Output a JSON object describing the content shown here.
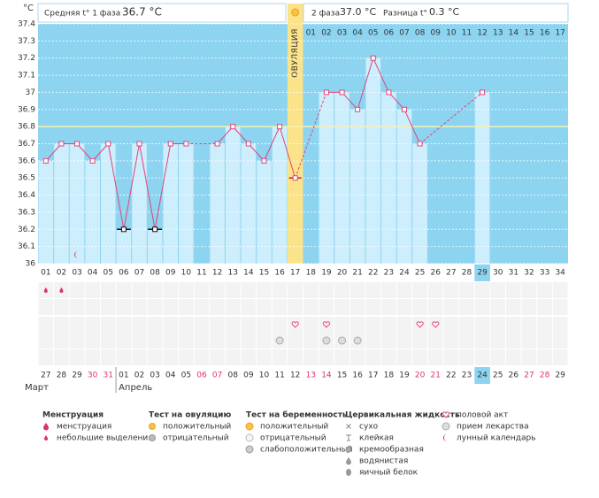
{
  "header": {
    "phase1_label": "Средняя t° 1 фаза",
    "phase1_value": "36.7 °C",
    "phase2_label": "2 фаза",
    "phase2_value": "37.0 °C",
    "diff_label": "Разница t°",
    "diff_value": "0.3 °C"
  },
  "chart_data": {
    "type": "line",
    "y_label": "°C",
    "categories": [
      "01",
      "02",
      "03",
      "04",
      "05",
      "06",
      "07",
      "08",
      "09",
      "10",
      "11",
      "12",
      "13",
      "14",
      "15",
      "16",
      "17",
      "18",
      "19",
      "20",
      "21",
      "22",
      "23",
      "24",
      "25",
      "26",
      "27",
      "28",
      "29",
      "30",
      "31",
      "32",
      "33",
      "34"
    ],
    "values": [
      36.6,
      36.7,
      36.7,
      36.6,
      36.7,
      36.2,
      36.7,
      36.2,
      36.7,
      36.7,
      null,
      36.7,
      36.8,
      36.7,
      36.6,
      36.8,
      36.5,
      null,
      37.0,
      37.0,
      36.9,
      37.2,
      37.0,
      36.9,
      36.7,
      null,
      null,
      null,
      37.0,
      null,
      null,
      null,
      null,
      null
    ],
    "ylim": [
      36,
      37.4
    ],
    "yticks": [
      36,
      36.1,
      36.2,
      36.3,
      36.4,
      36.5,
      36.6,
      36.7,
      36.8,
      36.9,
      37,
      37.1,
      37.2,
      37.3,
      37.4
    ],
    "grid": true,
    "color": "#e0457b",
    "bar_color": "#cdeefc",
    "background": "#8dd4f1",
    "coverline": 36.8,
    "ovulation_day": 17,
    "ovulation_label": "ОВУЛЯЦИЯ",
    "phase2_labels": [
      "01",
      "02",
      "03",
      "04",
      "05",
      "06",
      "07",
      "08",
      "09",
      "10",
      "11",
      "12",
      "13",
      "14",
      "15",
      "16",
      "17"
    ],
    "excluded_days": [
      6,
      8
    ],
    "current_day": 29,
    "dates": [
      "27",
      "28",
      "29",
      "30",
      "31",
      "01",
      "02",
      "03",
      "04",
      "05",
      "06",
      "07",
      "08",
      "09",
      "10",
      "11",
      "12",
      "13",
      "14",
      "15",
      "16",
      "17",
      "18",
      "19",
      "20",
      "21",
      "22",
      "23",
      "24",
      "25",
      "26",
      "27",
      "28",
      "29"
    ],
    "weekend_days": [
      4,
      5,
      11,
      12,
      18,
      19,
      25,
      26,
      32,
      33
    ],
    "months": [
      {
        "name": "Март",
        "start_day": 1
      },
      {
        "name": "Апрель",
        "start_day": 6
      }
    ],
    "events": {
      "menstruation": [
        1,
        2
      ],
      "intercourse": [
        17,
        19,
        25,
        26
      ],
      "medication": [
        16,
        19,
        20,
        21
      ],
      "lunar": [
        3
      ]
    }
  },
  "legend": [
    {
      "title": "Менструация",
      "items": [
        "менструация",
        "небольшие выделения"
      ]
    },
    {
      "title": "Тест на овуляцию",
      "items": [
        "положительный",
        "отрицательный"
      ]
    },
    {
      "title": "Тест на беременность",
      "items": [
        "положительный",
        "отрицательный",
        "слабоположительный"
      ]
    },
    {
      "title": "Цервикальная жидкость",
      "items": [
        "сухо",
        "клейкая",
        "кремообразная",
        "водянистая",
        "яичный белок"
      ]
    },
    {
      "items": [
        "половой акт",
        "прием лекарства",
        "лунный календарь"
      ]
    }
  ]
}
